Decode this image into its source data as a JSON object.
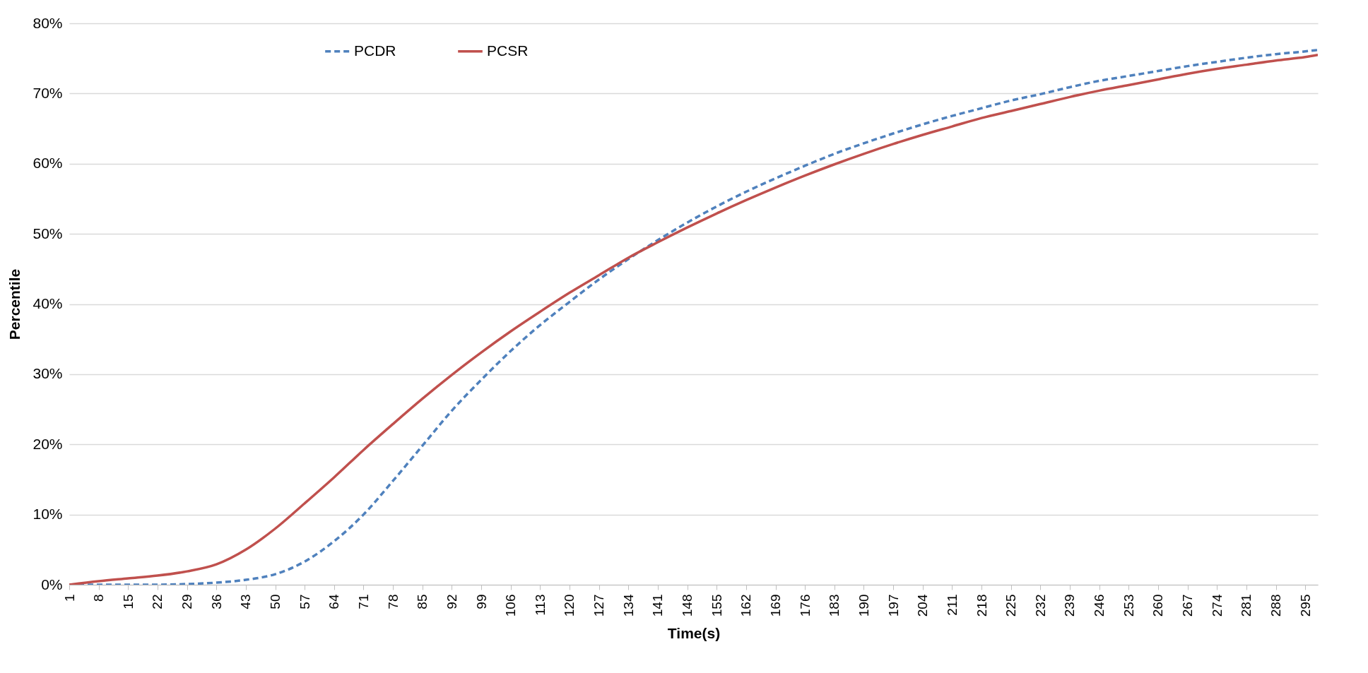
{
  "chart_data": {
    "type": "line",
    "xlabel": "Time(s)",
    "ylabel": "Percentile",
    "x": [
      1,
      8,
      15,
      22,
      29,
      36,
      43,
      50,
      57,
      64,
      71,
      78,
      85,
      92,
      99,
      106,
      113,
      120,
      127,
      134,
      141,
      148,
      155,
      162,
      169,
      176,
      183,
      190,
      197,
      204,
      211,
      218,
      225,
      232,
      239,
      246,
      253,
      260,
      267,
      274,
      281,
      288,
      295,
      298
    ],
    "xlim": [
      1,
      298
    ],
    "xticks": [
      1,
      8,
      15,
      22,
      29,
      36,
      43,
      50,
      57,
      64,
      71,
      78,
      85,
      92,
      99,
      106,
      113,
      120,
      127,
      134,
      141,
      148,
      155,
      162,
      169,
      176,
      183,
      190,
      197,
      204,
      211,
      218,
      225,
      232,
      239,
      246,
      253,
      260,
      267,
      274,
      281,
      288,
      295
    ],
    "ylim": [
      0,
      80
    ],
    "yticks": [
      {
        "value": 0,
        "label": "0%"
      },
      {
        "value": 10,
        "label": "10%"
      },
      {
        "value": 20,
        "label": "20%"
      },
      {
        "value": 30,
        "label": "30%"
      },
      {
        "value": 40,
        "label": "40%"
      },
      {
        "value": 50,
        "label": "50%"
      },
      {
        "value": 60,
        "label": "60%"
      },
      {
        "value": 70,
        "label": "70%"
      },
      {
        "value": 80,
        "label": "80%"
      }
    ],
    "grid": "y",
    "legend": "top left",
    "series": [
      {
        "name": "PCDR",
        "color": "#4f81bd",
        "line_style": "dashed",
        "values": [
          0,
          0,
          0,
          0,
          0.1,
          0.3,
          0.7,
          1.5,
          3.3,
          6.2,
          10,
          14.8,
          19.8,
          24.8,
          29.2,
          33.3,
          37,
          40.3,
          43.5,
          46.4,
          49.1,
          51.6,
          53.9,
          56,
          57.9,
          59.7,
          61.4,
          62.9,
          64.3,
          65.6,
          66.8,
          67.9,
          69,
          69.9,
          70.9,
          71.8,
          72.5,
          73.2,
          73.9,
          74.5,
          75.1,
          75.6,
          76,
          76.2
        ]
      },
      {
        "name": "PCSR",
        "color": "#c0504d",
        "line_style": "solid",
        "values": [
          0,
          0.5,
          0.9,
          1.3,
          1.9,
          2.9,
          5,
          8,
          11.6,
          15.3,
          19.2,
          22.9,
          26.5,
          29.9,
          33.1,
          36.1,
          38.9,
          41.6,
          44.1,
          46.6,
          48.8,
          50.9,
          52.9,
          54.8,
          56.6,
          58.3,
          59.9,
          61.4,
          62.8,
          64.1,
          65.3,
          66.5,
          67.5,
          68.5,
          69.5,
          70.4,
          71.2,
          72,
          72.8,
          73.5,
          74.1,
          74.7,
          75.2,
          75.5
        ]
      }
    ]
  }
}
